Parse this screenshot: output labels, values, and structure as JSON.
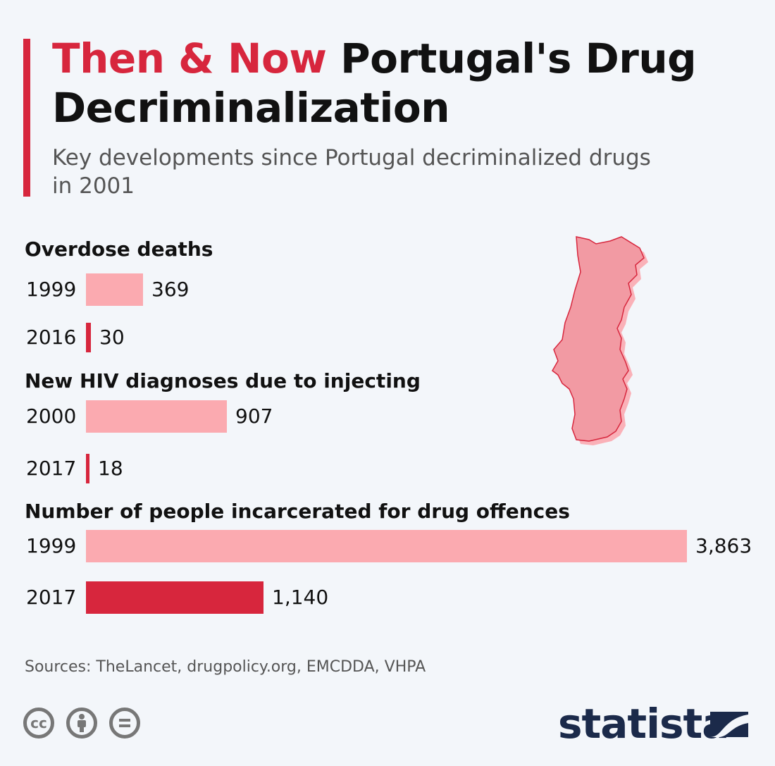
{
  "header": {
    "title_highlight": "Then & Now",
    "title_rest": " Portugal's Drug Decriminalization",
    "subtitle": "Key developments since Portugal decriminalized drugs in 2001"
  },
  "colors": {
    "accent": "#d7263d",
    "then_bar": "#fbaab0",
    "now_bar": "#d7263d",
    "background": "#f3f6fa"
  },
  "chart_data": [
    {
      "type": "bar",
      "orientation": "horizontal",
      "title": "Overdose deaths",
      "categories": [
        "1999",
        "2016"
      ],
      "values": [
        369,
        30
      ],
      "value_labels": [
        "369",
        "30"
      ]
    },
    {
      "type": "bar",
      "orientation": "horizontal",
      "title": "New HIV diagnoses due to injecting",
      "categories": [
        "2000",
        "2017"
      ],
      "values": [
        907,
        18
      ],
      "value_labels": [
        "907",
        "18"
      ]
    },
    {
      "type": "bar",
      "orientation": "horizontal",
      "title": "Number of people incarcerated for drug offences",
      "categories": [
        "1999",
        "2017"
      ],
      "values": [
        3863,
        1140
      ],
      "value_labels": [
        "3,863",
        "1,140"
      ]
    }
  ],
  "map": {
    "icon": "portugal-map-icon"
  },
  "footer": {
    "sources": "Sources: TheLancet, drugpolicy.org, EMCDDA, VHPA",
    "license_icons": [
      "cc-icon",
      "attribution-icon",
      "no-derivatives-icon"
    ],
    "cc_label": "cc",
    "brand": "statista",
    "brand_icon": "statista-logo-icon"
  }
}
